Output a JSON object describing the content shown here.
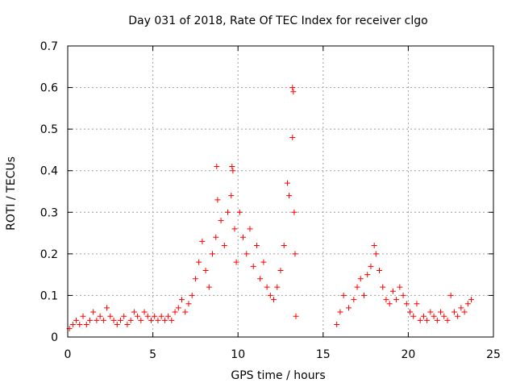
{
  "chart_data": {
    "type": "scatter",
    "title": "Day 031 of 2018, Rate Of TEC Index for receiver clgo",
    "xlabel": "GPS time / hours",
    "ylabel": "ROTI / TECUs",
    "xlim": [
      0,
      25
    ],
    "ylim": [
      0,
      0.7
    ],
    "xticks": [
      0,
      5,
      10,
      15,
      20,
      25
    ],
    "xtick_labels": [
      "0",
      "5",
      "10",
      "15",
      "20",
      "25"
    ],
    "yticks": [
      0,
      0.1,
      0.2,
      0.3,
      0.4,
      0.5,
      0.6,
      0.7
    ],
    "ytick_labels": [
      "0",
      "0.1",
      "0.2",
      "0.3",
      "0.4",
      "0.5",
      "0.6",
      "0.7"
    ],
    "grid": true,
    "marker": "+",
    "color": "#ff0000",
    "series": [
      {
        "name": "ROTI",
        "points": [
          [
            0.1,
            0.02
          ],
          [
            0.3,
            0.03
          ],
          [
            0.5,
            0.04
          ],
          [
            0.7,
            0.03
          ],
          [
            0.9,
            0.05
          ],
          [
            1.1,
            0.03
          ],
          [
            1.3,
            0.04
          ],
          [
            1.5,
            0.06
          ],
          [
            1.7,
            0.04
          ],
          [
            1.9,
            0.05
          ],
          [
            2.1,
            0.04
          ],
          [
            2.3,
            0.07
          ],
          [
            2.5,
            0.05
          ],
          [
            2.7,
            0.04
          ],
          [
            2.9,
            0.03
          ],
          [
            3.1,
            0.04
          ],
          [
            3.3,
            0.05
          ],
          [
            3.5,
            0.03
          ],
          [
            3.7,
            0.04
          ],
          [
            3.9,
            0.06
          ],
          [
            4.1,
            0.05
          ],
          [
            4.3,
            0.04
          ],
          [
            4.5,
            0.06
          ],
          [
            4.7,
            0.05
          ],
          [
            4.9,
            0.04
          ],
          [
            5.1,
            0.05
          ],
          [
            5.3,
            0.04
          ],
          [
            5.5,
            0.05
          ],
          [
            5.7,
            0.04
          ],
          [
            5.9,
            0.05
          ],
          [
            6.1,
            0.04
          ],
          [
            6.3,
            0.06
          ],
          [
            6.5,
            0.07
          ],
          [
            6.7,
            0.09
          ],
          [
            6.9,
            0.06
          ],
          [
            7.1,
            0.08
          ],
          [
            7.3,
            0.1
          ],
          [
            7.5,
            0.14
          ],
          [
            7.7,
            0.18
          ],
          [
            7.9,
            0.23
          ],
          [
            8.1,
            0.16
          ],
          [
            8.3,
            0.12
          ],
          [
            8.5,
            0.2
          ],
          [
            8.7,
            0.24
          ],
          [
            8.8,
            0.33
          ],
          [
            8.75,
            0.41
          ],
          [
            9.0,
            0.28
          ],
          [
            9.2,
            0.22
          ],
          [
            9.4,
            0.3
          ],
          [
            9.6,
            0.34
          ],
          [
            9.65,
            0.41
          ],
          [
            9.7,
            0.4
          ],
          [
            9.8,
            0.26
          ],
          [
            9.9,
            0.18
          ],
          [
            10.1,
            0.3
          ],
          [
            10.3,
            0.24
          ],
          [
            10.5,
            0.2
          ],
          [
            10.7,
            0.26
          ],
          [
            10.9,
            0.17
          ],
          [
            11.1,
            0.22
          ],
          [
            11.3,
            0.14
          ],
          [
            11.5,
            0.18
          ],
          [
            11.7,
            0.12
          ],
          [
            11.9,
            0.1
          ],
          [
            12.1,
            0.09
          ],
          [
            12.3,
            0.12
          ],
          [
            12.5,
            0.16
          ],
          [
            12.7,
            0.22
          ],
          [
            12.9,
            0.37
          ],
          [
            13.0,
            0.34
          ],
          [
            13.2,
            0.6
          ],
          [
            13.25,
            0.59
          ],
          [
            13.2,
            0.48
          ],
          [
            13.3,
            0.3
          ],
          [
            13.35,
            0.2
          ],
          [
            13.4,
            0.05
          ],
          [
            15.8,
            0.03
          ],
          [
            16.0,
            0.06
          ],
          [
            16.2,
            0.1
          ],
          [
            16.5,
            0.07
          ],
          [
            16.8,
            0.09
          ],
          [
            17.0,
            0.12
          ],
          [
            17.2,
            0.14
          ],
          [
            17.4,
            0.1
          ],
          [
            17.6,
            0.15
          ],
          [
            17.8,
            0.17
          ],
          [
            18.0,
            0.22
          ],
          [
            18.1,
            0.2
          ],
          [
            18.3,
            0.16
          ],
          [
            18.5,
            0.12
          ],
          [
            18.7,
            0.09
          ],
          [
            18.9,
            0.08
          ],
          [
            19.1,
            0.11
          ],
          [
            19.3,
            0.09
          ],
          [
            19.5,
            0.12
          ],
          [
            19.7,
            0.1
          ],
          [
            19.9,
            0.08
          ],
          [
            20.1,
            0.06
          ],
          [
            20.3,
            0.05
          ],
          [
            20.5,
            0.08
          ],
          [
            20.7,
            0.04
          ],
          [
            20.9,
            0.05
          ],
          [
            21.1,
            0.04
          ],
          [
            21.3,
            0.06
          ],
          [
            21.5,
            0.05
          ],
          [
            21.7,
            0.04
          ],
          [
            21.9,
            0.06
          ],
          [
            22.1,
            0.05
          ],
          [
            22.3,
            0.04
          ],
          [
            22.5,
            0.1
          ],
          [
            22.7,
            0.06
          ],
          [
            22.9,
            0.05
          ],
          [
            23.1,
            0.07
          ],
          [
            23.3,
            0.06
          ],
          [
            23.5,
            0.08
          ],
          [
            23.7,
            0.09
          ]
        ]
      }
    ]
  }
}
